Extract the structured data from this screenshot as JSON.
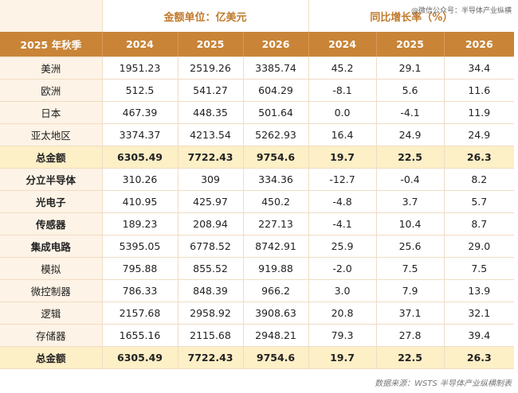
{
  "watermark": "@微信公众号：半导体产业纵横",
  "table": {
    "group_headers": [
      "金额单位：亿美元",
      "同比增长率（%）"
    ],
    "header": [
      "2025 年秋季",
      "2024",
      "2025",
      "2026",
      "2024",
      "2025",
      "2026"
    ],
    "rows": [
      [
        "美洲",
        "1951.23",
        "2519.26",
        "3385.74",
        "45.2",
        "29.1",
        "34.4"
      ],
      [
        "欧洲",
        "512.5",
        "541.27",
        "604.29",
        "-8.1",
        "5.6",
        "11.6"
      ],
      [
        "日本",
        "467.39",
        "448.35",
        "501.64",
        "0.0",
        "-4.1",
        "11.9"
      ],
      [
        "亚太地区",
        "3374.37",
        "4213.54",
        "5262.93",
        "16.4",
        "24.9",
        "24.9"
      ],
      [
        "总金额",
        "6305.49",
        "7722.43",
        "9754.6",
        "19.7",
        "22.5",
        "26.3"
      ],
      [
        "分立半导体",
        "310.26",
        "309",
        "334.36",
        "-12.7",
        "-0.4",
        "8.2"
      ],
      [
        "光电子",
        "410.95",
        "425.97",
        "450.2",
        "-4.8",
        "3.7",
        "5.7"
      ],
      [
        "传感器",
        "189.23",
        "208.94",
        "227.13",
        "-4.1",
        "10.4",
        "8.7"
      ],
      [
        "集成电路",
        "5395.05",
        "6778.52",
        "8742.91",
        "25.9",
        "25.6",
        "29.0"
      ],
      [
        "模拟",
        "795.88",
        "855.52",
        "919.88",
        "-2.0",
        "7.5",
        "7.5"
      ],
      [
        "微控制器",
        "786.33",
        "848.39",
        "966.2",
        "3.0",
        "7.9",
        "13.9"
      ],
      [
        "逻辑",
        "2157.68",
        "2958.92",
        "3908.63",
        "20.8",
        "37.1",
        "32.1"
      ],
      [
        "存储器",
        "1655.16",
        "2115.68",
        "2948.21",
        "79.3",
        "27.8",
        "39.4"
      ],
      [
        "总金额",
        "6305.49",
        "7722.43",
        "9754.6",
        "19.7",
        "22.5",
        "26.3"
      ]
    ]
  },
  "footer": "数据来源：WSTS 半导体产业纵横制表"
}
